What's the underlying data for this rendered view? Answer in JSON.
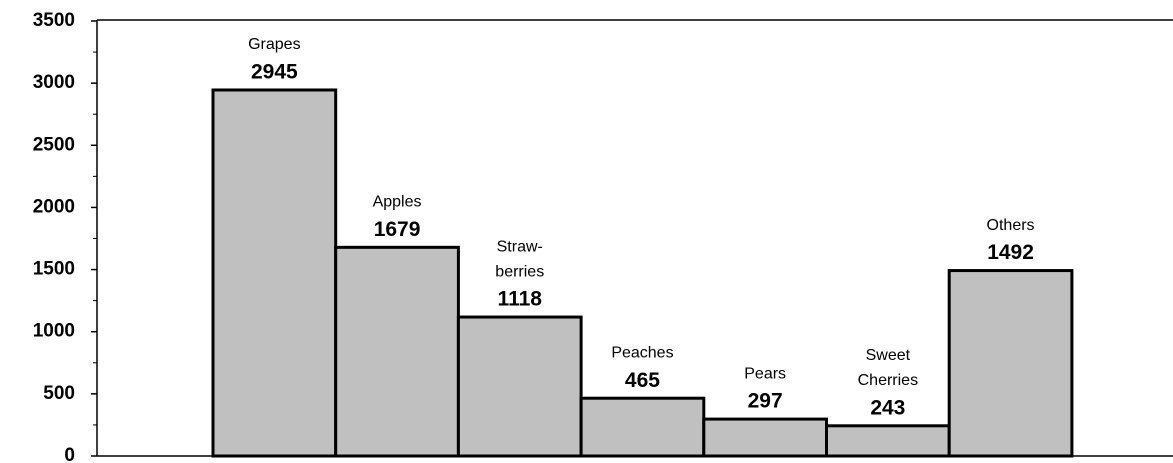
{
  "chart_data": {
    "type": "bar",
    "categories": [
      [
        "Grapes"
      ],
      [
        "Apples"
      ],
      [
        "Straw-",
        "berries"
      ],
      [
        "Peaches"
      ],
      [
        "Pears"
      ],
      [
        "Sweet",
        "Cherries"
      ],
      [
        "Others"
      ]
    ],
    "values": [
      2945,
      1679,
      1118,
      465,
      297,
      243,
      1492
    ],
    "color": "#c0c0c0",
    "ylim": [
      0,
      3500
    ],
    "yticks": [
      0,
      500,
      1000,
      1500,
      2000,
      2500,
      3000,
      3500
    ],
    "minor_yticks": [
      250,
      750,
      1250,
      1750,
      2250,
      2750,
      3250
    ],
    "grid": false
  }
}
